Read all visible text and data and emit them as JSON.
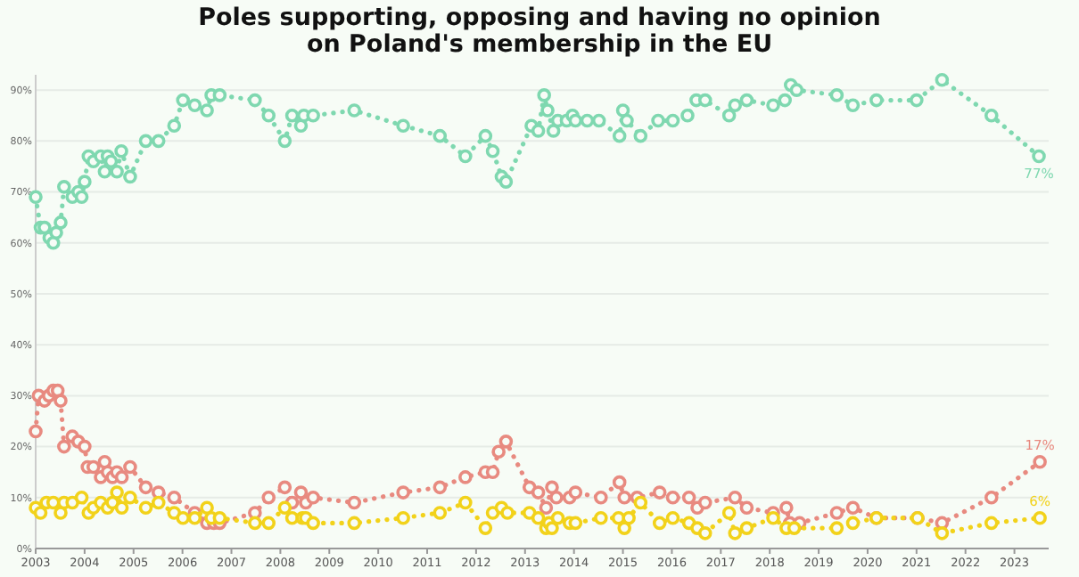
{
  "chart_data": {
    "type": "line",
    "title": "Poles supporting, opposing and having no opinion on Poland's membership in the EU",
    "xlim": [
      2003,
      2023.7
    ],
    "xticks": [
      2003,
      2004,
      2005,
      2006,
      2007,
      2008,
      2009,
      2010,
      2011,
      2012,
      2013,
      2014,
      2015,
      2016,
      2017,
      2018,
      2019,
      2020,
      2021,
      2022,
      2023
    ],
    "ylim": [
      0,
      93
    ],
    "yticks": [
      {
        "value": 0,
        "label": "0%"
      },
      {
        "value": 10,
        "label": "10%"
      },
      {
        "value": 20,
        "label": "20%"
      },
      {
        "value": 30,
        "label": "30%"
      },
      {
        "value": 40,
        "label": "40%"
      },
      {
        "value": 50,
        "label": "50%"
      },
      {
        "value": 60,
        "label": "60%"
      },
      {
        "value": 70,
        "label": "70%"
      },
      {
        "value": 80,
        "label": "80%"
      },
      {
        "value": 90,
        "label": "90%"
      }
    ],
    "grid": "y",
    "marker": "circle",
    "line_style": "dotted",
    "series": [
      {
        "color": "#7fd8b0",
        "x": [
          2003.0,
          2003.1,
          2003.18,
          2003.28,
          2003.36,
          2003.42,
          2003.51,
          2003.58,
          2003.75,
          2003.87,
          2003.94,
          2004.0,
          2004.08,
          2004.18,
          2004.33,
          2004.41,
          2004.47,
          2004.54,
          2004.66,
          2004.75,
          2004.93,
          2005.25,
          2005.51,
          2005.83,
          2006.01,
          2006.25,
          2006.5,
          2006.59,
          2006.76,
          2007.48,
          2007.76,
          2008.09,
          2008.24,
          2008.42,
          2008.48,
          2008.67,
          2009.51,
          2010.51,
          2011.26,
          2011.78,
          2012.19,
          2012.34,
          2012.52,
          2012.61,
          2013.13,
          2013.27,
          2013.39,
          2013.46,
          2013.58,
          2013.67,
          2013.85,
          2013.97,
          2014.03,
          2014.27,
          2014.51,
          2014.93,
          2015.0,
          2015.08,
          2015.36,
          2015.72,
          2016.02,
          2016.32,
          2016.5,
          2016.68,
          2017.17,
          2017.29,
          2017.53,
          2018.07,
          2018.31,
          2018.43,
          2018.55,
          2019.37,
          2019.7,
          2020.18,
          2021.0,
          2021.52,
          2022.53,
          2023.5
        ],
        "values": [
          69,
          63,
          63,
          61,
          60,
          62,
          64,
          71,
          69,
          70,
          69,
          72,
          77,
          76,
          77,
          74,
          77,
          76,
          74,
          78,
          73,
          80,
          80,
          83,
          88,
          87,
          86,
          89,
          89,
          88,
          85,
          80,
          85,
          83,
          85,
          85,
          86,
          83,
          81,
          77,
          81,
          78,
          73,
          72,
          83,
          82,
          89,
          86,
          82,
          84,
          84,
          85,
          84,
          84,
          84,
          81,
          86,
          84,
          81,
          84,
          84,
          85,
          88,
          88,
          85,
          87,
          88,
          87,
          88,
          91,
          90,
          89,
          87,
          88,
          88,
          92,
          85,
          77
        ]
      },
      {
        "color": "#e88a80",
        "x": [
          2003.0,
          2003.06,
          2003.18,
          2003.27,
          2003.36,
          2003.45,
          2003.51,
          2003.58,
          2003.75,
          2003.87,
          2004.0,
          2004.06,
          2004.18,
          2004.33,
          2004.41,
          2004.47,
          2004.57,
          2004.66,
          2004.76,
          2004.93,
          2005.25,
          2005.51,
          2005.83,
          2006.25,
          2006.5,
          2006.64,
          2006.76,
          2007.48,
          2007.76,
          2008.09,
          2008.24,
          2008.42,
          2008.52,
          2008.67,
          2009.51,
          2010.51,
          2011.26,
          2011.78,
          2012.19,
          2012.34,
          2012.46,
          2012.61,
          2013.09,
          2013.27,
          2013.43,
          2013.55,
          2013.64,
          2013.91,
          2014.03,
          2014.55,
          2014.93,
          2015.03,
          2015.29,
          2015.75,
          2016.02,
          2016.35,
          2016.52,
          2016.68,
          2017.29,
          2017.53,
          2018.07,
          2018.34,
          2018.41,
          2018.61,
          2019.37,
          2019.7,
          2020.18,
          2021.02,
          2021.52,
          2022.53,
          2023.52
        ],
        "values": [
          23,
          30,
          29,
          30,
          31,
          31,
          29,
          20,
          22,
          21,
          20,
          16,
          16,
          14,
          17,
          15,
          14,
          15,
          14,
          16,
          12,
          11,
          10,
          7,
          5,
          5,
          5,
          7,
          10,
          12,
          9,
          11,
          9,
          10,
          9,
          11,
          12,
          14,
          15,
          15,
          19,
          21,
          12,
          11,
          8,
          12,
          10,
          10,
          11,
          10,
          13,
          10,
          10,
          11,
          10,
          10,
          8,
          9,
          10,
          8,
          7,
          8,
          5,
          5,
          7,
          8,
          6,
          6,
          5,
          10,
          17
        ]
      },
      {
        "color": "#f2d21a",
        "x": [
          2003.0,
          2003.1,
          2003.22,
          2003.36,
          2003.51,
          2003.58,
          2003.75,
          2003.94,
          2004.08,
          2004.18,
          2004.33,
          2004.47,
          2004.57,
          2004.66,
          2004.76,
          2004.93,
          2005.25,
          2005.51,
          2005.83,
          2006.01,
          2006.25,
          2006.5,
          2006.59,
          2006.76,
          2007.48,
          2007.76,
          2008.09,
          2008.24,
          2008.45,
          2008.52,
          2008.67,
          2009.51,
          2010.51,
          2011.26,
          2011.78,
          2012.19,
          2012.34,
          2012.52,
          2012.64,
          2013.09,
          2013.27,
          2013.43,
          2013.49,
          2013.55,
          2013.67,
          2013.91,
          2014.03,
          2014.55,
          2014.91,
          2015.03,
          2015.12,
          2015.36,
          2015.75,
          2016.02,
          2016.35,
          2016.52,
          2016.68,
          2017.17,
          2017.29,
          2017.53,
          2018.07,
          2018.34,
          2018.5,
          2019.37,
          2019.7,
          2020.18,
          2021.02,
          2021.52,
          2022.53,
          2023.52
        ],
        "values": [
          8,
          7,
          9,
          9,
          7,
          9,
          9,
          10,
          7,
          8,
          9,
          8,
          9,
          11,
          8,
          10,
          8,
          9,
          7,
          6,
          6,
          8,
          6,
          6,
          5,
          5,
          8,
          6,
          6,
          6,
          5,
          5,
          6,
          7,
          9,
          4,
          7,
          8,
          7,
          7,
          6,
          4,
          5,
          4,
          6,
          5,
          5,
          6,
          6,
          4,
          6,
          9,
          5,
          6,
          5,
          4,
          3,
          7,
          3,
          4,
          6,
          4,
          4,
          4,
          5,
          6,
          6,
          3,
          5,
          6
        ]
      }
    ],
    "annotations": [
      "77%",
      "17%",
      "6%"
    ]
  }
}
